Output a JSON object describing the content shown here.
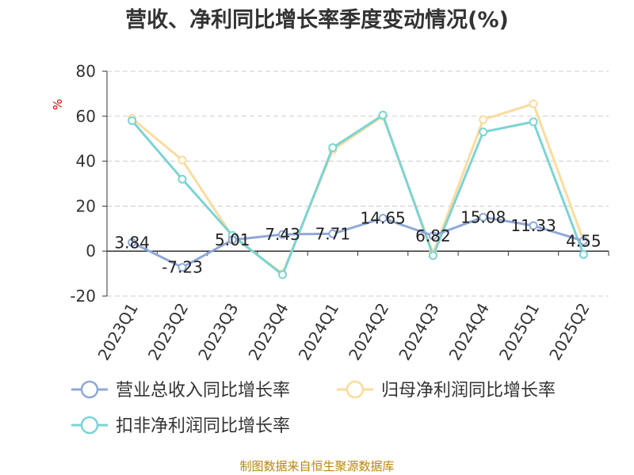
{
  "chart_data": {
    "type": "line",
    "title": "营收、净利同比增长率季度变动情况(%)",
    "ylabel": "%",
    "ylim": [
      -20,
      80
    ],
    "yticks": [
      -20,
      0,
      20,
      40,
      60,
      80
    ],
    "categories": [
      "2023Q1",
      "2023Q2",
      "2023Q3",
      "2023Q4",
      "2024Q1",
      "2024Q2",
      "2024Q3",
      "2024Q4",
      "2025Q1",
      "2025Q2"
    ],
    "grid": true,
    "legend_position": "bottom",
    "series": [
      {
        "name": "营业总收入同比增长率",
        "color": "#8fa8d8",
        "values": [
          3.84,
          -7.23,
          5.01,
          7.43,
          7.71,
          14.65,
          6.82,
          15.08,
          11.33,
          4.55
        ],
        "labels": [
          "3.84",
          "-7.23",
          "5.01",
          "7.43",
          "7.71",
          "14.65",
          "6.82",
          "15.08",
          "11.33",
          "4.55"
        ]
      },
      {
        "name": "归母净利润同比增长率",
        "color": "#fadc9e",
        "values": [
          59,
          40.5,
          6.5,
          -10,
          45,
          60,
          -1,
          58.5,
          65.5,
          4.5
        ]
      },
      {
        "name": "扣非净利润同比增长率",
        "color": "#7dd3d3",
        "values": [
          58,
          32,
          7,
          -10.5,
          46,
          60.5,
          -2,
          53,
          57.5,
          -1.5
        ]
      }
    ]
  },
  "source": "制图数据来自恒生聚源数据库"
}
